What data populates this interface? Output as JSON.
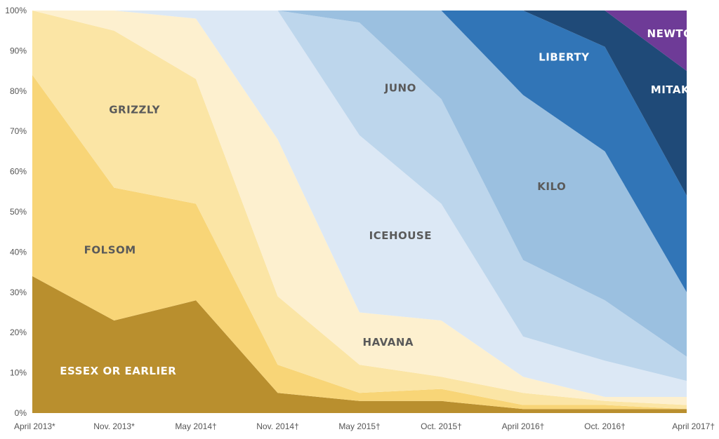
{
  "chart_data": {
    "type": "area",
    "stacked": true,
    "normalized": true,
    "categories": [
      "April 2013*",
      "Nov. 2013*",
      "May 2014†",
      "Nov. 2014†",
      "May 2015†",
      "Oct. 2015†",
      "April 2016†",
      "Oct. 2016†",
      "April 2017†"
    ],
    "y_ticks": [
      "0%",
      "10%",
      "20%",
      "30%",
      "40%",
      "50%",
      "60%",
      "70%",
      "80%",
      "90%",
      "100%"
    ],
    "ylim": [
      0,
      100
    ],
    "series": [
      {
        "name": "ESSEX OR EARLIER",
        "color": "#b98f2e",
        "label_color": "#ffffff",
        "values": [
          34,
          23,
          28,
          5,
          3,
          3,
          1,
          1,
          1
        ]
      },
      {
        "name": "FOLSOM",
        "color": "#f8d577",
        "label_color": "#5a5a5a",
        "values": [
          50,
          33,
          24,
          7,
          2,
          3,
          1,
          1,
          0
        ]
      },
      {
        "name": "GRIZZLY",
        "color": "#fbe5a5",
        "label_color": "#5a5a5a",
        "values": [
          16,
          39,
          31,
          17,
          7,
          3,
          3,
          1,
          1
        ]
      },
      {
        "name": "HAVANA",
        "color": "#fdf0cf",
        "label_color": "#5a5a5a",
        "values": [
          0,
          5,
          15,
          39,
          13,
          14,
          4,
          1,
          2
        ]
      },
      {
        "name": "ICEHOUSE",
        "color": "#dce8f5",
        "label_color": "#5a5a5a",
        "values": [
          0,
          0,
          2,
          32,
          44,
          29,
          10,
          9,
          4
        ]
      },
      {
        "name": "JUNO",
        "color": "#bdd6ec",
        "label_color": "#5a5a5a",
        "values": [
          0,
          0,
          0,
          0,
          28,
          26,
          19,
          15,
          6
        ]
      },
      {
        "name": "KILO",
        "color": "#9bc0e0",
        "label_color": "#5a5a5a",
        "values": [
          0,
          0,
          0,
          0,
          3,
          22,
          41,
          37,
          16
        ]
      },
      {
        "name": "LIBERTY",
        "color": "#3175b7",
        "label_color": "#ffffff",
        "values": [
          0,
          0,
          0,
          0,
          0,
          0,
          21,
          26,
          24
        ]
      },
      {
        "name": "MITAKA",
        "color": "#1f4a78",
        "label_color": "#ffffff",
        "values": [
          0,
          0,
          0,
          0,
          0,
          0,
          0,
          9,
          31
        ]
      },
      {
        "name": "NEWTON",
        "color": "#6e3b97",
        "label_color": "#ffffff",
        "values": [
          0,
          0,
          0,
          0,
          0,
          0,
          0,
          0,
          15
        ]
      }
    ],
    "series_labels_text": [
      "ESSEX OR EARLIER",
      "FOLSOM",
      "GRIZZLY",
      "HAVANA",
      "ICEHOUSE",
      "JUNO",
      "KILO",
      "LIBERTY",
      "MITAKA",
      "NEWTON"
    ],
    "grid": false,
    "legend": "none"
  }
}
